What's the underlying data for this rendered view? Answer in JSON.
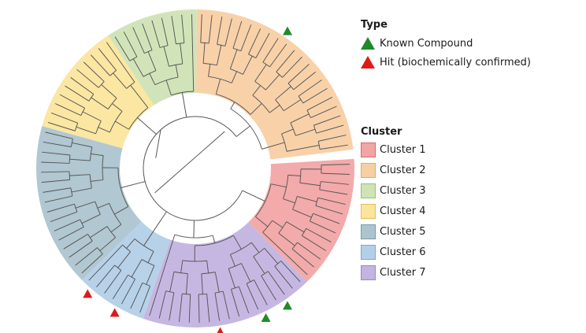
{
  "legend_type": {
    "title": "Type",
    "items": [
      {
        "label": "Known Compound",
        "color": "#1f8a2a"
      },
      {
        "label": "Hit (biochemically confirmed)",
        "color": "#e01a1a"
      }
    ]
  },
  "legend_cluster": {
    "title": "Cluster",
    "items": [
      {
        "label": "Cluster 1",
        "fill": "#f2a5a5",
        "stroke": "#d46a6a"
      },
      {
        "label": "Cluster 2",
        "fill": "#f8cfa4",
        "stroke": "#e0a96a"
      },
      {
        "label": "Cluster 3",
        "fill": "#cfe3b5",
        "stroke": "#9cbf7a"
      },
      {
        "label": "Cluster 4",
        "fill": "#fbe59d",
        "stroke": "#e0c05a"
      },
      {
        "label": "Cluster 5",
        "fill": "#adc4cf",
        "stroke": "#7a9aab"
      },
      {
        "label": "Cluster 6",
        "fill": "#b3cfe8",
        "stroke": "#7fa6cc"
      },
      {
        "label": "Cluster 7",
        "fill": "#c3b3e0",
        "stroke": "#9a86c9"
      }
    ]
  },
  "tree": {
    "clusters": [
      {
        "name": "Cluster 1",
        "leaves": 13,
        "fill": "#f2a5a5"
      },
      {
        "name": "Cluster 7",
        "leaves": 17,
        "fill": "#c3b3e0"
      },
      {
        "name": "Cluster 6",
        "leaves": 7,
        "fill": "#b3cfe8"
      },
      {
        "name": "Cluster 5",
        "leaves": 16,
        "fill": "#adc4cf"
      },
      {
        "name": "Cluster 4",
        "leaves": 11,
        "fill": "#fbe59d"
      },
      {
        "name": "Cluster 3",
        "leaves": 9,
        "fill": "#cfe3b5"
      },
      {
        "name": "Cluster 2",
        "leaves": 22,
        "fill": "#f8cfa4"
      }
    ],
    "markers": [
      {
        "type": "known",
        "color": "#1f8a2a"
      },
      {
        "type": "known",
        "color": "#1f8a2a"
      },
      {
        "type": "known",
        "color": "#1f8a2a"
      },
      {
        "type": "hit",
        "color": "#e01a1a"
      },
      {
        "type": "hit",
        "color": "#e01a1a"
      },
      {
        "type": "hit",
        "color": "#e01a1a"
      }
    ]
  }
}
